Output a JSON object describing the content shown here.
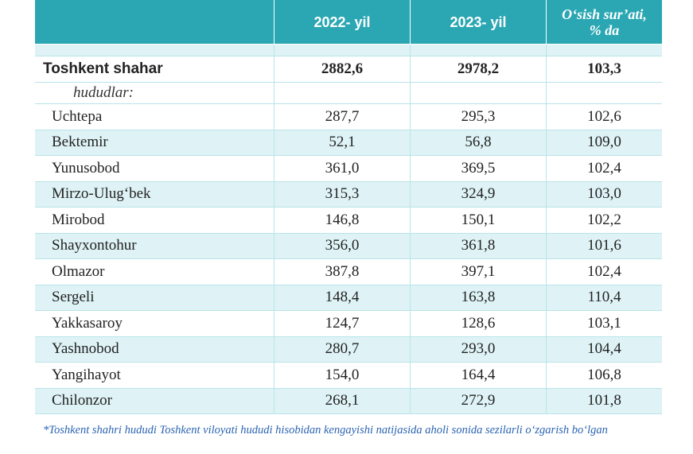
{
  "header": {
    "col_name": "",
    "col_2022": "2022- yil",
    "col_2023": "2023- yil",
    "col_growth_line1": "O‘sish sur’ati,",
    "col_growth_line2": "% da"
  },
  "total": {
    "name": "Toshkent shahar",
    "v2022": "2882,6",
    "v2023": "2978,2",
    "growth": "103,3"
  },
  "subheading": "hududlar:",
  "rows": [
    {
      "name": "Uchtepa",
      "v2022": "287,7",
      "v2023": "295,3",
      "growth": "102,6"
    },
    {
      "name": "Bektemir",
      "v2022": "52,1",
      "v2023": "56,8",
      "growth": "109,0"
    },
    {
      "name": "Yunusobod",
      "v2022": "361,0",
      "v2023": "369,5",
      "growth": "102,4"
    },
    {
      "name": "Mirzo-Ulug‘bek",
      "v2022": "315,3",
      "v2023": "324,9",
      "growth": "103,0"
    },
    {
      "name": "Mirobod",
      "v2022": "146,8",
      "v2023": "150,1",
      "growth": "102,2"
    },
    {
      "name": "Shayxontohur",
      "v2022": "356,0",
      "v2023": "361,8",
      "growth": "101,6"
    },
    {
      "name": "Olmazor",
      "v2022": "387,8",
      "v2023": "397,1",
      "growth": "102,4"
    },
    {
      "name": "Sergeli",
      "v2022": "148,4",
      "v2023": "163,8",
      "growth": "110,4"
    },
    {
      "name": "Yakkasaroy",
      "v2022": "124,7",
      "v2023": "128,6",
      "growth": "103,1"
    },
    {
      "name": "Yashnobod",
      "v2022": "280,7",
      "v2023": "293,0",
      "growth": "104,4"
    },
    {
      "name": "Yangihayot",
      "v2022": "154,0",
      "v2023": "164,4",
      "growth": "106,8"
    },
    {
      "name": "Chilonzor",
      "v2022": "268,1",
      "v2023": "272,9",
      "growth": "101,8"
    }
  ],
  "footnote": "*Toshkent shahri hududi Toshkent viloyati hududi hisobidan kengayishi natijasida aholi sonida sezilarli o‘zgarish bo‘lgan",
  "colors": {
    "header_bg": "#2aa7b3",
    "row_tint": "#dff3f6",
    "footnote": "#2a63b2"
  }
}
